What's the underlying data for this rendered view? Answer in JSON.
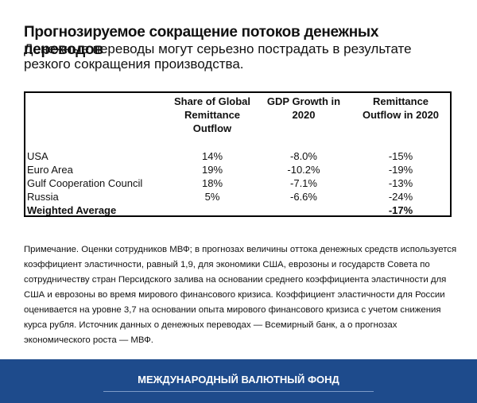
{
  "header": {
    "title": "Прогнозируемое сокращение потоков денежных переводов",
    "subtitle": "Денежные переводы могут серьезно пострадать в результате резкого сокращения производства."
  },
  "table": {
    "columns": [
      "Share of Global Remittance Outflow",
      "GDP Growth in 2020",
      "Remittance Outflow in 2020"
    ],
    "rows": [
      [
        "USA",
        "14%",
        "-8.0%",
        "-15%"
      ],
      [
        "Euro Area",
        "19%",
        "-10.2%",
        "-19%"
      ],
      [
        "Gulf Cooperation Council",
        "18%",
        "-7.1%",
        "-13%"
      ],
      [
        "Russia",
        "5%",
        "-6.6%",
        "-24%"
      ]
    ],
    "summary": {
      "label": "Weighted Average",
      "remittance": "-17%"
    }
  },
  "note": "Примечание. Оценки сотрудников МВФ; в прогнозах величины оттока денежных средств используется коэффициент эластичности, равный 1,9, для экономики США, еврозоны и государств Совета по сотрудничеству стран Персидского залива на основании среднего коэффициента эластичности для США и еврозоны во время мирового финансового кризиса. Коэффициент эластичности для России оценивается на уровне 3,7 на основании опыта мирового финансового кризиса с учетом снижения курса рубля. Источник данных о денежных переводах — Всемирный банк, а о прогнозах экономического роста — МВФ.",
  "footer": "МЕЖДУНАРОДНЫЙ ВАЛЮТНЫЙ ФОНД"
}
